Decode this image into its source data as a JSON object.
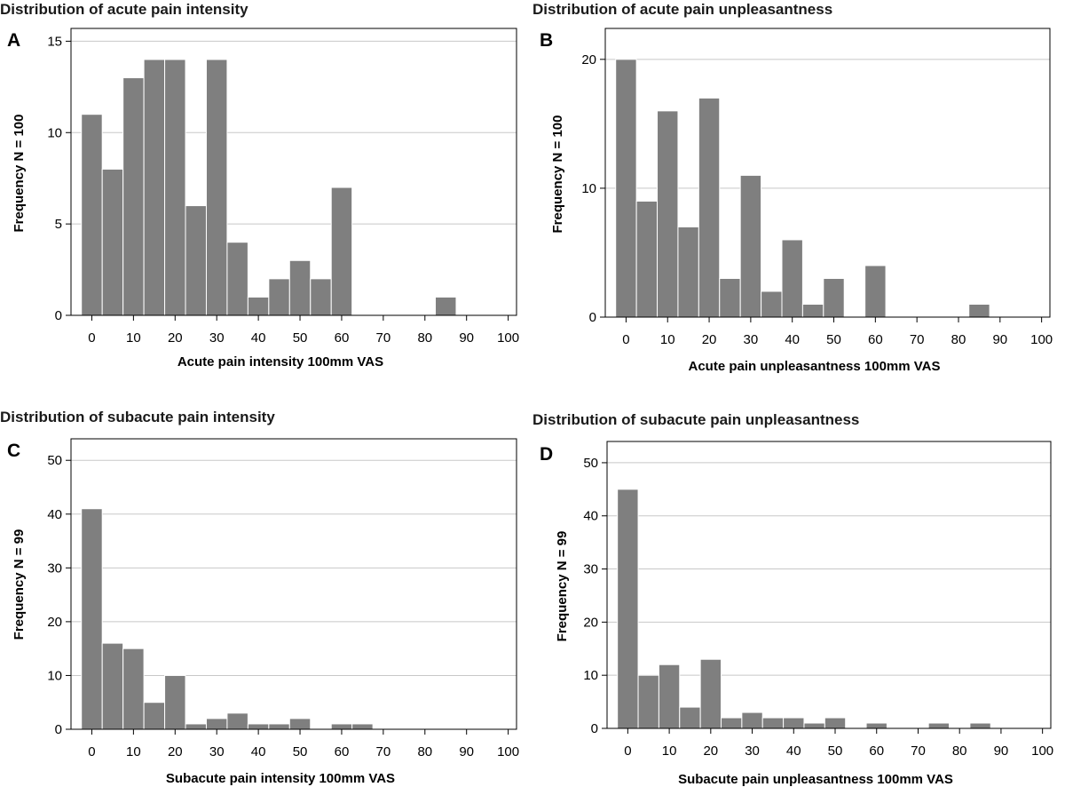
{
  "chart_data": [
    {
      "type": "bar",
      "panel_label": "A",
      "title": "Distribution of acute pain intensity",
      "xlabel": "Acute pain intensity 100mm VAS",
      "ylabel": "Frequency N = 100",
      "bin_width": 5,
      "bin_starts": [
        -2.5,
        2.5,
        7.5,
        12.5,
        17.5,
        22.5,
        27.5,
        32.5,
        37.5,
        42.5,
        47.5,
        52.5,
        57.5,
        82.5
      ],
      "values": [
        11,
        8,
        13,
        14,
        14,
        6,
        14,
        4,
        1,
        2,
        3,
        2,
        7,
        1
      ],
      "xlim": [
        -5,
        102
      ],
      "ylim": [
        0,
        15.7
      ],
      "xticks": [
        0,
        10,
        20,
        30,
        40,
        50,
        60,
        70,
        80,
        90,
        100
      ],
      "yticks": [
        0,
        5,
        10,
        15
      ],
      "grid": true
    },
    {
      "type": "bar",
      "panel_label": "B",
      "title": "Distribution of acute pain unpleasantness",
      "xlabel": "Acute pain unpleasantness 100mm VAS",
      "ylabel": "Frequency N = 100",
      "bin_width": 5,
      "bin_starts": [
        -2.5,
        2.5,
        7.5,
        12.5,
        17.5,
        22.5,
        27.5,
        32.5,
        37.5,
        42.5,
        47.5,
        57.5,
        82.5
      ],
      "values": [
        20,
        9,
        16,
        7,
        17,
        3,
        11,
        2,
        6,
        1,
        3,
        4,
        1
      ],
      "xlim": [
        -5,
        102
      ],
      "ylim": [
        0,
        22.4
      ],
      "xticks": [
        0,
        10,
        20,
        30,
        40,
        50,
        60,
        70,
        80,
        90,
        100
      ],
      "yticks": [
        0,
        10,
        20
      ],
      "grid": true
    },
    {
      "type": "bar",
      "panel_label": "C",
      "title": "Distribution of subacute pain intensity",
      "xlabel": "Subacute pain intensity 100mm VAS",
      "ylabel": "Frequency N = 99",
      "bin_width": 5,
      "bin_starts": [
        -2.5,
        2.5,
        7.5,
        12.5,
        17.5,
        22.5,
        27.5,
        32.5,
        37.5,
        42.5,
        47.5,
        57.5,
        62.5
      ],
      "values": [
        41,
        16,
        15,
        5,
        10,
        1,
        2,
        3,
        1,
        1,
        2,
        1,
        1
      ],
      "xlim": [
        -5,
        102
      ],
      "ylim": [
        0,
        54
      ],
      "xticks": [
        0,
        10,
        20,
        30,
        40,
        50,
        60,
        70,
        80,
        90,
        100
      ],
      "yticks": [
        0,
        10,
        20,
        30,
        40,
        50
      ],
      "grid": true
    },
    {
      "type": "bar",
      "panel_label": "D",
      "title": "Distribution of subacute pain unpleasantness",
      "xlabel": "Subacute pain unpleasantness 100mm VAS",
      "ylabel": "Frequency N = 99",
      "bin_width": 5,
      "bin_starts": [
        -2.5,
        2.5,
        7.5,
        12.5,
        17.5,
        22.5,
        27.5,
        32.5,
        37.5,
        42.5,
        47.5,
        57.5,
        72.5,
        82.5
      ],
      "values": [
        45,
        10,
        12,
        4,
        13,
        2,
        3,
        2,
        2,
        1,
        2,
        1,
        1,
        1
      ],
      "xlim": [
        -5,
        102
      ],
      "ylim": [
        0,
        54
      ],
      "xticks": [
        0,
        10,
        20,
        30,
        40,
        50,
        60,
        70,
        80,
        90,
        100
      ],
      "yticks": [
        0,
        10,
        20,
        30,
        40,
        50
      ],
      "grid": true
    }
  ]
}
